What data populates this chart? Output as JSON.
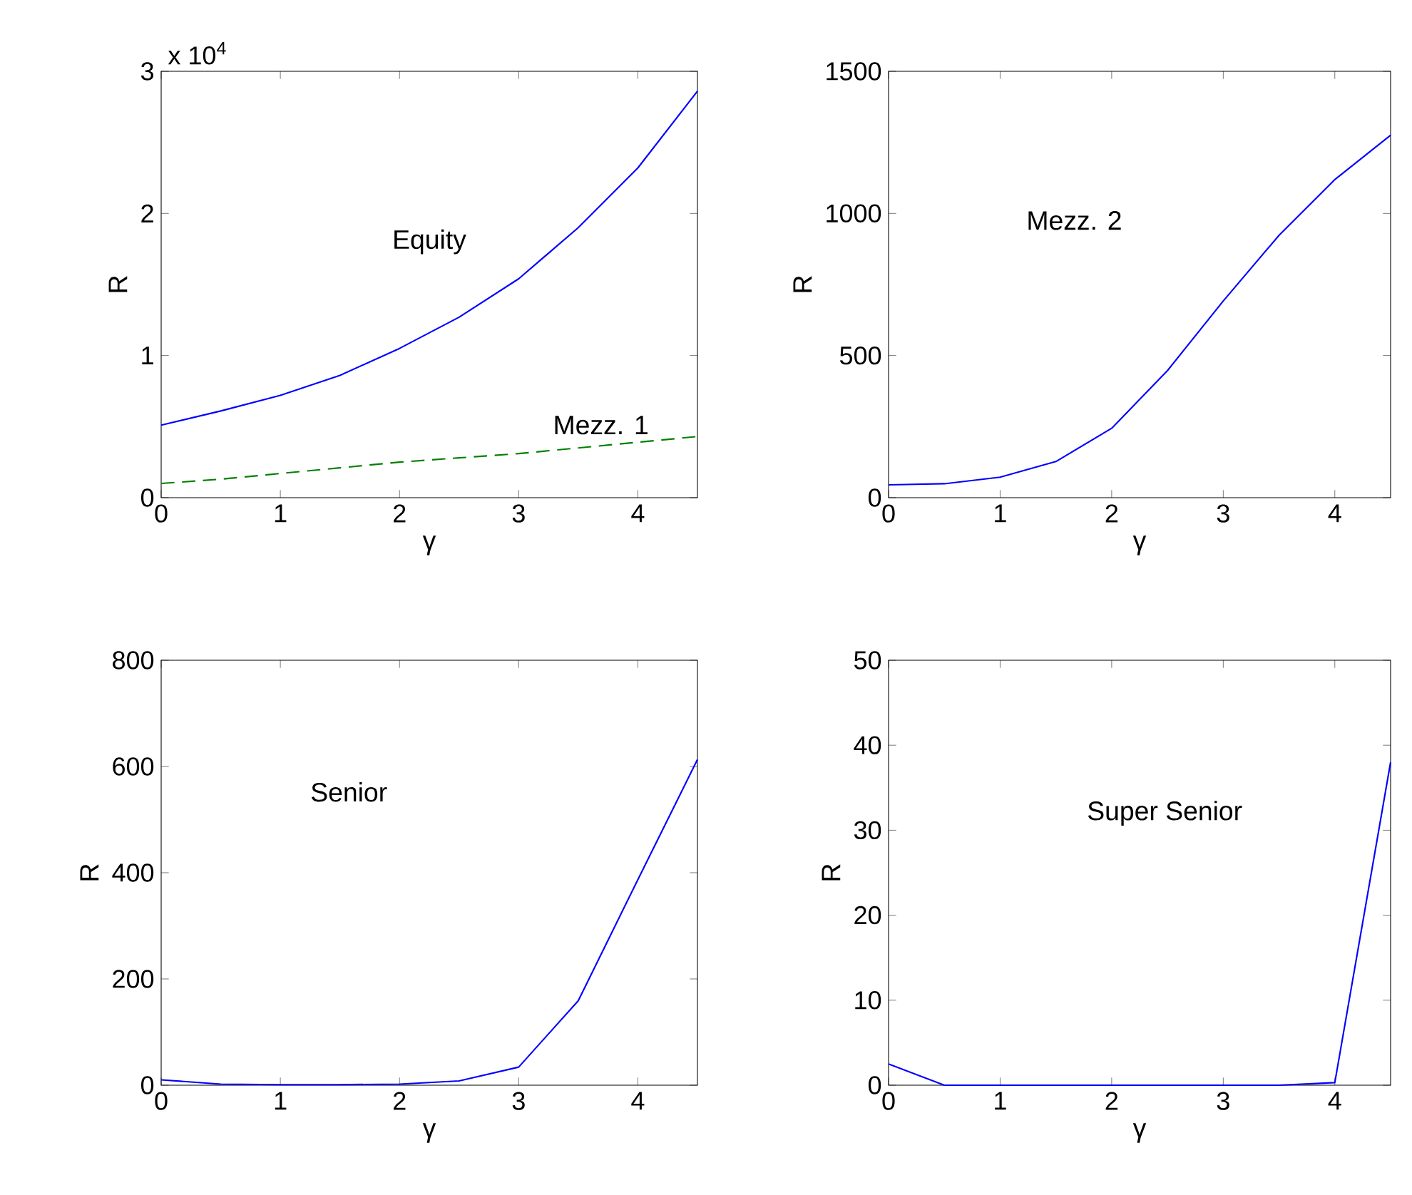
{
  "chart_data": [
    {
      "type": "line",
      "xlabel": "γ",
      "ylabel": "R",
      "annotations": [
        "x 10$^{4}$"
      ],
      "x": [
        0,
        0.5,
        1,
        1.5,
        2,
        2.5,
        3,
        3.5,
        4,
        4.5
      ],
      "series": [
        {
          "name": "Equity",
          "color": "#0000ff",
          "line_style": "solid",
          "values": [
            0.51,
            0.61,
            0.72,
            0.86,
            1.05,
            1.27,
            1.54,
            1.9,
            2.32,
            2.86
          ]
        },
        {
          "name": "Mezz. 1",
          "color": "#008000",
          "line_style": "dashed",
          "values": [
            0.1,
            0.13,
            0.17,
            0.21,
            0.25,
            0.28,
            0.31,
            0.35,
            0.39,
            0.43
          ]
        }
      ],
      "xlim": [
        0,
        4.5
      ],
      "ylim": [
        0,
        3
      ],
      "xticks": [
        0,
        1,
        2,
        3,
        4
      ],
      "yticks": [
        0,
        1,
        2,
        3
      ]
    },
    {
      "type": "line",
      "xlabel": "γ",
      "ylabel": "R",
      "x": [
        0,
        0.5,
        1,
        1.5,
        2,
        2.5,
        3,
        3.5,
        4,
        4.5
      ],
      "series": [
        {
          "name": "Mezz. 2",
          "color": "#0000ff",
          "line_style": "solid",
          "values": [
            45,
            49,
            72,
            127,
            244,
            447,
            692,
            923,
            1119,
            1275
          ]
        }
      ],
      "xlim": [
        0,
        4.5
      ],
      "ylim": [
        0,
        1500
      ],
      "xticks": [
        0,
        1,
        2,
        3,
        4
      ],
      "yticks": [
        0,
        500,
        1000,
        1500
      ]
    },
    {
      "type": "line",
      "xlabel": "γ",
      "ylabel": "R",
      "x": [
        0,
        0.5,
        1,
        1.5,
        2,
        2.5,
        3,
        3.5,
        4,
        4.5
      ],
      "series": [
        {
          "name": "Senior",
          "color": "#0000ff",
          "line_style": "solid",
          "values": [
            10,
            2,
            1,
            1,
            2,
            8,
            34,
            159,
            387,
            613
          ]
        }
      ],
      "xlim": [
        0,
        4.5
      ],
      "ylim": [
        0,
        800
      ],
      "xticks": [
        0,
        1,
        2,
        3,
        4
      ],
      "yticks": [
        0,
        200,
        400,
        600,
        800
      ]
    },
    {
      "type": "line",
      "xlabel": "γ",
      "ylabel": "R",
      "x": [
        0,
        0.5,
        1,
        1.5,
        2,
        2.5,
        3,
        3.5,
        4,
        4.5
      ],
      "series": [
        {
          "name": "Super Senior",
          "color": "#0000ff",
          "line_style": "solid",
          "values": [
            2.5,
            0,
            0,
            0,
            0,
            0,
            0,
            0,
            0.3,
            38
          ]
        }
      ],
      "xlim": [
        0,
        4.5
      ],
      "ylim": [
        0,
        50
      ],
      "xticks": [
        0,
        1,
        2,
        3,
        4
      ],
      "yticks": [
        0,
        10,
        20,
        30,
        40,
        50
      ]
    }
  ]
}
